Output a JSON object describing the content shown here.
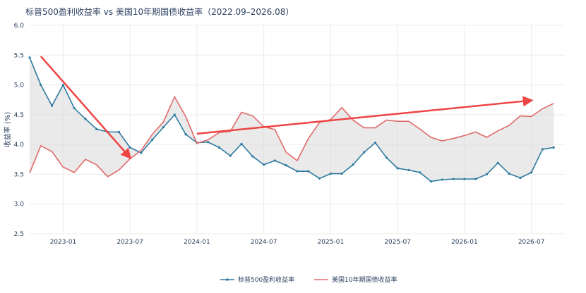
{
  "chart_data": {
    "type": "line",
    "title": "标普500盈利收益率 vs 美国10年期国债收益率（2022.09–2026.08）",
    "ylabel": "收益率 (%)",
    "xlabel": "",
    "ylim": [
      2.5,
      6.0
    ],
    "yticks": [
      "2.5",
      "3.0",
      "3.5",
      "4.0",
      "4.5",
      "5.0",
      "5.5",
      "6.0"
    ],
    "yticks_values": [
      2.5,
      3.0,
      3.5,
      4.0,
      4.5,
      5.0,
      5.5,
      6.0
    ],
    "x_start": "2022-10",
    "xticks": [
      "2023-01",
      "2023-07",
      "2024-01",
      "2024-07",
      "2025-01",
      "2025-07",
      "2026-01",
      "2026-07"
    ],
    "grid": true,
    "legend_position": "bottom",
    "fill_between": true,
    "series": [
      {
        "name": "标普500盈利收益率",
        "color": "#2e7aa0",
        "values": [
          5.46,
          5.0,
          4.65,
          5.0,
          4.61,
          4.43,
          4.26,
          4.21,
          4.21,
          3.95,
          3.86,
          4.08,
          4.29,
          4.5,
          4.17,
          4.03,
          4.04,
          3.95,
          3.81,
          4.01,
          3.8,
          3.66,
          3.73,
          3.65,
          3.55,
          3.55,
          3.43,
          3.51,
          3.51,
          3.66,
          3.87,
          4.03,
          3.78,
          3.6,
          3.57,
          3.53,
          3.38,
          3.41,
          3.42,
          3.42,
          3.42,
          3.5,
          3.69,
          3.51,
          3.44,
          3.53,
          3.92,
          3.95
        ]
      },
      {
        "name": "美国10年期国债收益率",
        "color": "#e06a6a",
        "values": [
          3.52,
          3.98,
          3.88,
          3.62,
          3.53,
          3.75,
          3.66,
          3.46,
          3.57,
          3.76,
          3.9,
          4.17,
          4.38,
          4.8,
          4.47,
          4.02,
          4.08,
          4.2,
          4.22,
          4.54,
          4.48,
          4.3,
          4.25,
          3.87,
          3.73,
          4.1,
          4.37,
          4.42,
          4.62,
          4.41,
          4.28,
          4.28,
          4.41,
          4.39,
          4.39,
          4.26,
          4.12,
          4.06,
          4.1,
          4.15,
          4.21,
          4.12,
          4.23,
          4.32,
          4.48,
          4.47,
          4.6,
          4.69
        ]
      }
    ],
    "annotations": [
      {
        "type": "arrow",
        "from": [
          "2022-11",
          5.48
        ],
        "to": [
          "2023-07",
          3.78
        ],
        "color": "#ee4444"
      },
      {
        "type": "arrow",
        "from": [
          "2024-01",
          4.18
        ],
        "to": [
          "2026-07",
          4.74
        ],
        "color": "#ee4444"
      }
    ]
  }
}
